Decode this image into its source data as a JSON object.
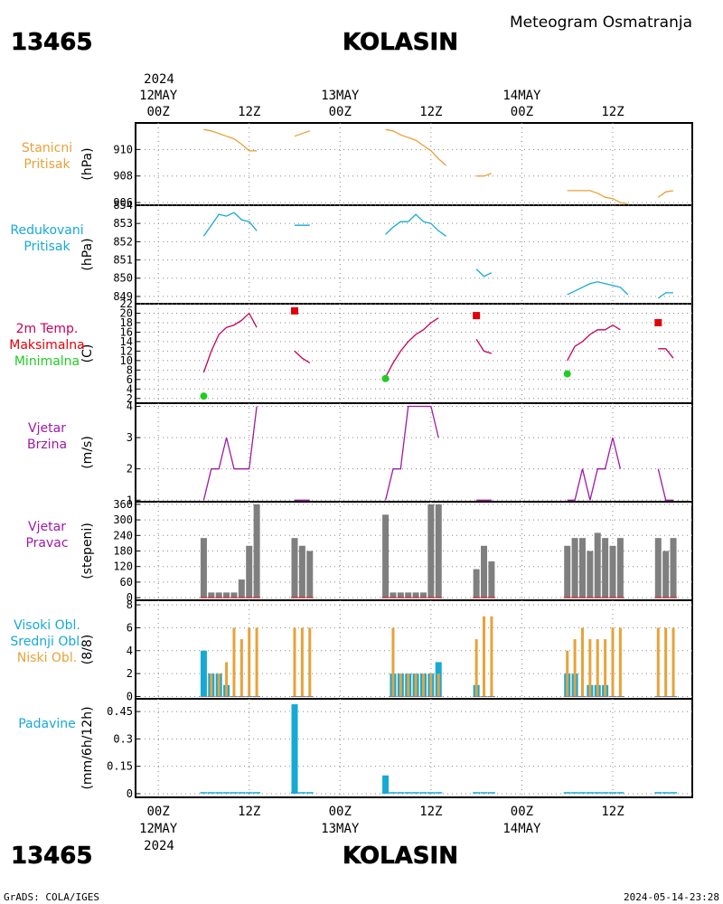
{
  "header": {
    "station_id": "13465",
    "station_name": "KOLASIN",
    "product_title": "Meteogram Osmatranja"
  },
  "footer": {
    "station_id": "13465",
    "station_name": "KOLASIN",
    "credit": "GrADS: COLA/IGES",
    "timestamp": "2024-05-14-23:28"
  },
  "time_axis": {
    "year_label": "2024",
    "ticks": [
      {
        "t": 0,
        "top": "00Z",
        "date": "12MAY"
      },
      {
        "t": 12,
        "top": "12Z",
        "date": ""
      },
      {
        "t": 24,
        "top": "00Z",
        "date": "13MAY"
      },
      {
        "t": 36,
        "top": "12Z",
        "date": ""
      },
      {
        "t": 48,
        "top": "00Z",
        "date": "14MAY"
      },
      {
        "t": 60,
        "top": "12Z",
        "date": ""
      }
    ],
    "range_hours": [
      -3,
      70.5
    ]
  },
  "panels": {
    "station_pressure": {
      "labels": [
        "Stanicni",
        "Pritisak"
      ],
      "unit": "(hPa)",
      "color": "#e8a23a",
      "ticks": [
        "906",
        "908",
        "910"
      ]
    },
    "reduced_pressure": {
      "labels": [
        "Redukovani",
        "Pritisak"
      ],
      "unit": "(hPa)",
      "color": "#16a9d6",
      "ticks": [
        "849",
        "850",
        "851",
        "852",
        "853",
        "854"
      ]
    },
    "temperature": {
      "labels": [
        "2m Temp.",
        "Maksimalna",
        "Minimalna"
      ],
      "label_colors": [
        "#c8005a",
        "#e0000a",
        "#22cc22"
      ],
      "unit": "(C)",
      "ticks": [
        "2",
        "4",
        "6",
        "8",
        "10",
        "12",
        "14",
        "16",
        "18",
        "20",
        "22"
      ]
    },
    "wind_speed": {
      "labels": [
        "Vjetar",
        "Brzina"
      ],
      "unit": "(m/s)",
      "color": "#9e1aa6",
      "ticks": [
        "1",
        "2",
        "3",
        "4"
      ]
    },
    "wind_direction": {
      "labels": [
        "Vjetar",
        "Pravac"
      ],
      "unit": "(stepeni)",
      "color": "#9e1aa6",
      "ticks": [
        "0",
        "60",
        "120",
        "180",
        "240",
        "300",
        "360"
      ]
    },
    "clouds": {
      "labels": [
        "Visoki Obl.",
        "Srednji Obl.",
        "Niski Obl."
      ],
      "label_colors": [
        "#16a9d6",
        "#16a9d6",
        "#e8a23a"
      ],
      "unit": "(8/8)",
      "ticks": [
        "0",
        "2",
        "4",
        "6",
        "8"
      ]
    },
    "precipitation": {
      "labels": [
        "Padavine"
      ],
      "unit": "(mm/6h/12h)",
      "color": "#16a9d6",
      "ticks": [
        "0",
        "0.15",
        "0.3",
        "0.45"
      ]
    }
  },
  "chart_data": [
    {
      "type": "line",
      "name": "Stanicni Pritisak",
      "ylim": [
        905.8,
        912
      ],
      "segments": [
        [
          [
            6,
            911.5
          ],
          [
            7,
            911.4
          ],
          [
            8,
            911.2
          ],
          [
            9,
            911
          ],
          [
            10,
            910.8
          ],
          [
            11,
            910.4
          ],
          [
            12,
            909.9
          ],
          [
            13,
            909.9
          ]
        ],
        [
          [
            18,
            911
          ],
          [
            19,
            911.2
          ],
          [
            20,
            911.4
          ]
        ],
        [
          [
            30,
            911.5
          ],
          [
            31,
            911.4
          ],
          [
            32,
            911.1
          ],
          [
            33,
            910.9
          ],
          [
            34,
            910.7
          ],
          [
            35,
            910.3
          ],
          [
            36,
            909.9
          ],
          [
            37,
            909.3
          ],
          [
            38,
            908.8
          ]
        ],
        [
          [
            42,
            908
          ],
          [
            43,
            908
          ],
          [
            44,
            908.2
          ]
        ],
        [
          [
            54,
            906.9
          ],
          [
            55,
            906.9
          ],
          [
            56,
            906.9
          ],
          [
            57,
            906.9
          ],
          [
            58,
            906.7
          ],
          [
            59,
            906.4
          ],
          [
            60,
            906.3
          ],
          [
            61,
            906
          ],
          [
            62,
            905.9
          ]
        ],
        [
          [
            66,
            906.4
          ],
          [
            67,
            906.8
          ],
          [
            68,
            906.9
          ]
        ]
      ]
    },
    {
      "type": "line",
      "name": "Redukovani Pritisak",
      "ylim": [
        848.6,
        854
      ],
      "segments": [
        [
          [
            6,
            852.3
          ],
          [
            7,
            852.9
          ],
          [
            8,
            853.5
          ],
          [
            9,
            853.4
          ],
          [
            10,
            853.6
          ],
          [
            11,
            853.2
          ],
          [
            12,
            853.1
          ],
          [
            13,
            852.6
          ]
        ],
        [
          [
            18,
            852.9
          ],
          [
            19,
            852.9
          ],
          [
            20,
            852.9
          ]
        ],
        [
          [
            30,
            852.4
          ],
          [
            31,
            852.8
          ],
          [
            32,
            853.1
          ],
          [
            33,
            853.1
          ],
          [
            34,
            853.5
          ],
          [
            35,
            853.1
          ],
          [
            36,
            853
          ],
          [
            37,
            852.6
          ],
          [
            38,
            852.3
          ]
        ],
        [
          [
            42,
            850.5
          ],
          [
            43,
            850.1
          ],
          [
            44,
            850.3
          ]
        ],
        [
          [
            54,
            849.1
          ],
          [
            55,
            849.3
          ],
          [
            56,
            849.5
          ],
          [
            57,
            849.7
          ],
          [
            58,
            849.8
          ],
          [
            59,
            849.7
          ],
          [
            60,
            849.6
          ],
          [
            61,
            849.5
          ],
          [
            62,
            849.1
          ]
        ],
        [
          [
            66,
            848.9
          ],
          [
            67,
            849.2
          ],
          [
            68,
            849.2
          ]
        ]
      ]
    },
    {
      "type": "line",
      "name": "2m Temp.",
      "ylim": [
        1,
        22
      ],
      "segments": [
        [
          [
            6,
            7.5
          ],
          [
            7,
            12
          ],
          [
            8,
            15.5
          ],
          [
            9,
            17
          ],
          [
            10,
            17.5
          ],
          [
            11,
            18.5
          ],
          [
            12,
            20
          ],
          [
            13,
            17
          ]
        ],
        [
          [
            18,
            12
          ],
          [
            19,
            10.5
          ],
          [
            20,
            9.5
          ]
        ],
        [
          [
            30,
            6.5
          ],
          [
            31,
            9.5
          ],
          [
            32,
            12
          ],
          [
            33,
            14
          ],
          [
            34,
            15.5
          ],
          [
            35,
            16.5
          ],
          [
            36,
            18
          ],
          [
            37,
            19
          ]
        ],
        [
          [
            42,
            14.5
          ],
          [
            43,
            12
          ],
          [
            44,
            11.5
          ]
        ],
        [
          [
            54,
            10
          ],
          [
            55,
            13
          ],
          [
            56,
            14
          ],
          [
            57,
            15.5
          ],
          [
            58,
            16.5
          ],
          [
            59,
            16.5
          ],
          [
            60,
            17.5
          ],
          [
            61,
            16.5
          ]
        ],
        [
          [
            66,
            12.5
          ],
          [
            67,
            12.5
          ],
          [
            68,
            10.5
          ]
        ]
      ],
      "max_points": [
        [
          18,
          20.5
        ],
        [
          42,
          19.5
        ],
        [
          66,
          18
        ]
      ],
      "min_points": [
        [
          6,
          2.5
        ],
        [
          30,
          6.2
        ],
        [
          54,
          7.2
        ]
      ]
    },
    {
      "type": "line",
      "name": "Vjetar Brzina",
      "ylim": [
        0.95,
        4.1
      ],
      "segments": [
        [
          [
            6,
            1
          ],
          [
            7,
            2
          ],
          [
            8,
            2
          ],
          [
            9,
            3
          ],
          [
            10,
            2
          ],
          [
            11,
            2
          ],
          [
            12,
            2
          ],
          [
            13,
            4
          ]
        ],
        [
          [
            18,
            1
          ],
          [
            19,
            1
          ],
          [
            20,
            1
          ]
        ],
        [
          [
            30,
            1
          ],
          [
            31,
            2
          ],
          [
            32,
            2
          ],
          [
            33,
            4
          ],
          [
            34,
            4
          ],
          [
            35,
            4
          ],
          [
            36,
            4
          ],
          [
            37,
            3
          ]
        ],
        [
          [
            42,
            1
          ],
          [
            43,
            1
          ],
          [
            44,
            1
          ]
        ],
        [
          [
            54,
            1
          ],
          [
            55,
            1
          ],
          [
            56,
            2
          ],
          [
            57,
            1
          ],
          [
            58,
            2
          ],
          [
            59,
            2
          ],
          [
            60,
            3
          ],
          [
            61,
            2
          ]
        ],
        [
          [
            66,
            2
          ],
          [
            67,
            1
          ],
          [
            68,
            1
          ]
        ]
      ]
    },
    {
      "type": "bar",
      "name": "Vjetar Pravac",
      "ylim": [
        -10,
        370
      ],
      "points": [
        [
          6,
          230
        ],
        [
          7,
          20
        ],
        [
          8,
          20
        ],
        [
          9,
          20
        ],
        [
          10,
          20
        ],
        [
          11,
          70
        ],
        [
          12,
          200
        ],
        [
          13,
          360
        ],
        [
          18,
          230
        ],
        [
          19,
          200
        ],
        [
          20,
          180
        ],
        [
          30,
          320
        ],
        [
          31,
          20
        ],
        [
          32,
          20
        ],
        [
          33,
          20
        ],
        [
          34,
          20
        ],
        [
          35,
          20
        ],
        [
          36,
          360
        ],
        [
          37,
          360
        ],
        [
          42,
          110
        ],
        [
          43,
          200
        ],
        [
          44,
          140
        ],
        [
          54,
          200
        ],
        [
          55,
          230
        ],
        [
          56,
          230
        ],
        [
          57,
          180
        ],
        [
          58,
          250
        ],
        [
          59,
          230
        ],
        [
          60,
          200
        ],
        [
          61,
          230
        ],
        [
          66,
          230
        ],
        [
          67,
          180
        ],
        [
          68,
          230
        ]
      ]
    },
    {
      "type": "bar",
      "name": "Oblacnost",
      "ylim": [
        -0.2,
        8.4
      ],
      "series": [
        {
          "name": "Visoki Obl.",
          "color": "#16a9d6",
          "values": [
            [
              6,
              4
            ],
            [
              7,
              2
            ],
            [
              8,
              2
            ],
            [
              9,
              1
            ],
            [
              10,
              0
            ],
            [
              11,
              0
            ],
            [
              12,
              0
            ],
            [
              13,
              0
            ],
            [
              18,
              0
            ],
            [
              19,
              0
            ],
            [
              20,
              0
            ],
            [
              31,
              2
            ],
            [
              32,
              2
            ],
            [
              33,
              2
            ],
            [
              34,
              2
            ],
            [
              35,
              2
            ],
            [
              36,
              2
            ],
            [
              37,
              3
            ],
            [
              42,
              1
            ],
            [
              43,
              0
            ],
            [
              44,
              0
            ],
            [
              54,
              2
            ],
            [
              55,
              2
            ],
            [
              56,
              0
            ],
            [
              57,
              1
            ],
            [
              58,
              1
            ],
            [
              59,
              1
            ],
            [
              60,
              0
            ],
            [
              61,
              0
            ],
            [
              66,
              0
            ],
            [
              67,
              0
            ],
            [
              68,
              0
            ]
          ]
        },
        {
          "name": "Niski Obl.",
          "color": "#e8a23a",
          "values": [
            [
              6,
              0
            ],
            [
              7,
              2
            ],
            [
              8,
              2
            ],
            [
              9,
              3
            ],
            [
              10,
              6
            ],
            [
              11,
              5
            ],
            [
              12,
              6
            ],
            [
              13,
              6
            ],
            [
              18,
              6
            ],
            [
              19,
              6
            ],
            [
              20,
              6
            ],
            [
              31,
              6
            ],
            [
              32,
              2
            ],
            [
              33,
              2
            ],
            [
              34,
              2
            ],
            [
              35,
              2
            ],
            [
              36,
              2
            ],
            [
              37,
              2
            ],
            [
              42,
              5
            ],
            [
              43,
              7
            ],
            [
              44,
              7
            ],
            [
              54,
              4
            ],
            [
              55,
              5
            ],
            [
              56,
              6
            ],
            [
              57,
              5
            ],
            [
              58,
              5
            ],
            [
              59,
              5
            ],
            [
              60,
              6
            ],
            [
              61,
              6
            ],
            [
              66,
              6
            ],
            [
              67,
              6
            ],
            [
              68,
              6
            ]
          ]
        }
      ]
    },
    {
      "type": "bar",
      "name": "Padavine",
      "ylim": [
        -0.02,
        0.52
      ],
      "points": [
        [
          6,
          0
        ],
        [
          7,
          0
        ],
        [
          8,
          0
        ],
        [
          9,
          0
        ],
        [
          10,
          0
        ],
        [
          11,
          0
        ],
        [
          12,
          0
        ],
        [
          13,
          0
        ],
        [
          18,
          0.49
        ],
        [
          19,
          0
        ],
        [
          20,
          0
        ],
        [
          30,
          0.1
        ],
        [
          31,
          0
        ],
        [
          32,
          0
        ],
        [
          33,
          0
        ],
        [
          34,
          0
        ],
        [
          35,
          0
        ],
        [
          36,
          0
        ],
        [
          37,
          0
        ],
        [
          42,
          0
        ],
        [
          43,
          0
        ],
        [
          44,
          0
        ],
        [
          54,
          0
        ],
        [
          55,
          0
        ],
        [
          56,
          0
        ],
        [
          57,
          0
        ],
        [
          58,
          0
        ],
        [
          59,
          0
        ],
        [
          60,
          0
        ],
        [
          61,
          0
        ],
        [
          66,
          0
        ],
        [
          67,
          0
        ],
        [
          68,
          0
        ]
      ]
    }
  ]
}
